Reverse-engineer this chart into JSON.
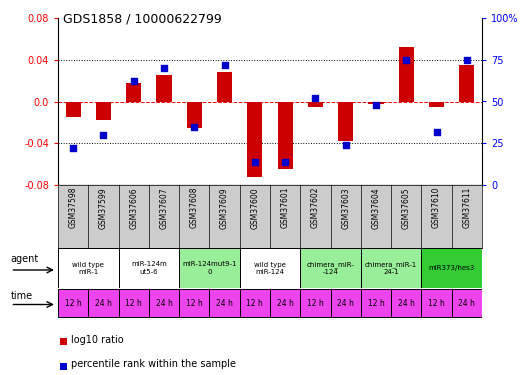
{
  "title": "GDS1858 / 10000622799",
  "samples": [
    "GSM37598",
    "GSM37599",
    "GSM37606",
    "GSM37607",
    "GSM37608",
    "GSM37609",
    "GSM37600",
    "GSM37601",
    "GSM37602",
    "GSM37603",
    "GSM37604",
    "GSM37605",
    "GSM37610",
    "GSM37611"
  ],
  "log10_ratio": [
    -0.015,
    -0.018,
    0.018,
    0.025,
    -0.025,
    0.028,
    -0.072,
    -0.065,
    -0.005,
    -0.038,
    -0.002,
    0.052,
    -0.005,
    0.035
  ],
  "percentile_rank": [
    22,
    30,
    62,
    70,
    35,
    72,
    14,
    14,
    52,
    24,
    48,
    75,
    32,
    75
  ],
  "ylim": [
    -0.08,
    0.08
  ],
  "yticks_left": [
    -0.08,
    -0.04,
    0.0,
    0.04,
    0.08
  ],
  "yticks_right": [
    0,
    25,
    50,
    75,
    100
  ],
  "dotted_lines": [
    -0.04,
    0.0,
    0.04
  ],
  "agent_groups": [
    {
      "label": "wild type\nmiR-1",
      "start": 0,
      "end": 2,
      "color": "#ffffff"
    },
    {
      "label": "miR-124m\nut5-6",
      "start": 2,
      "end": 4,
      "color": "#ffffff"
    },
    {
      "label": "miR-124mut9-1\n0",
      "start": 4,
      "end": 6,
      "color": "#99ee99"
    },
    {
      "label": "wild type\nmiR-124",
      "start": 6,
      "end": 8,
      "color": "#ffffff"
    },
    {
      "label": "chimera_miR-\n-124",
      "start": 8,
      "end": 10,
      "color": "#99ee99"
    },
    {
      "label": "chimera_miR-1\n24-1",
      "start": 10,
      "end": 12,
      "color": "#99ee99"
    },
    {
      "label": "miR373/hes3",
      "start": 12,
      "end": 14,
      "color": "#33cc33"
    }
  ],
  "time_labels": [
    "12 h",
    "24 h",
    "12 h",
    "24 h",
    "12 h",
    "24 h",
    "12 h",
    "24 h",
    "12 h",
    "24 h",
    "12 h",
    "24 h",
    "12 h",
    "24 h"
  ],
  "bar_color": "#cc0000",
  "dot_color": "#0000cc",
  "sample_bg": "#cccccc",
  "plot_bg": "#ffffff",
  "time_bg": "#ee44ee",
  "fig_bg": "#ffffff",
  "legend_bar_label": "log10 ratio",
  "legend_dot_label": "percentile rank within the sample",
  "bar_width": 0.5,
  "dot_size": 25
}
